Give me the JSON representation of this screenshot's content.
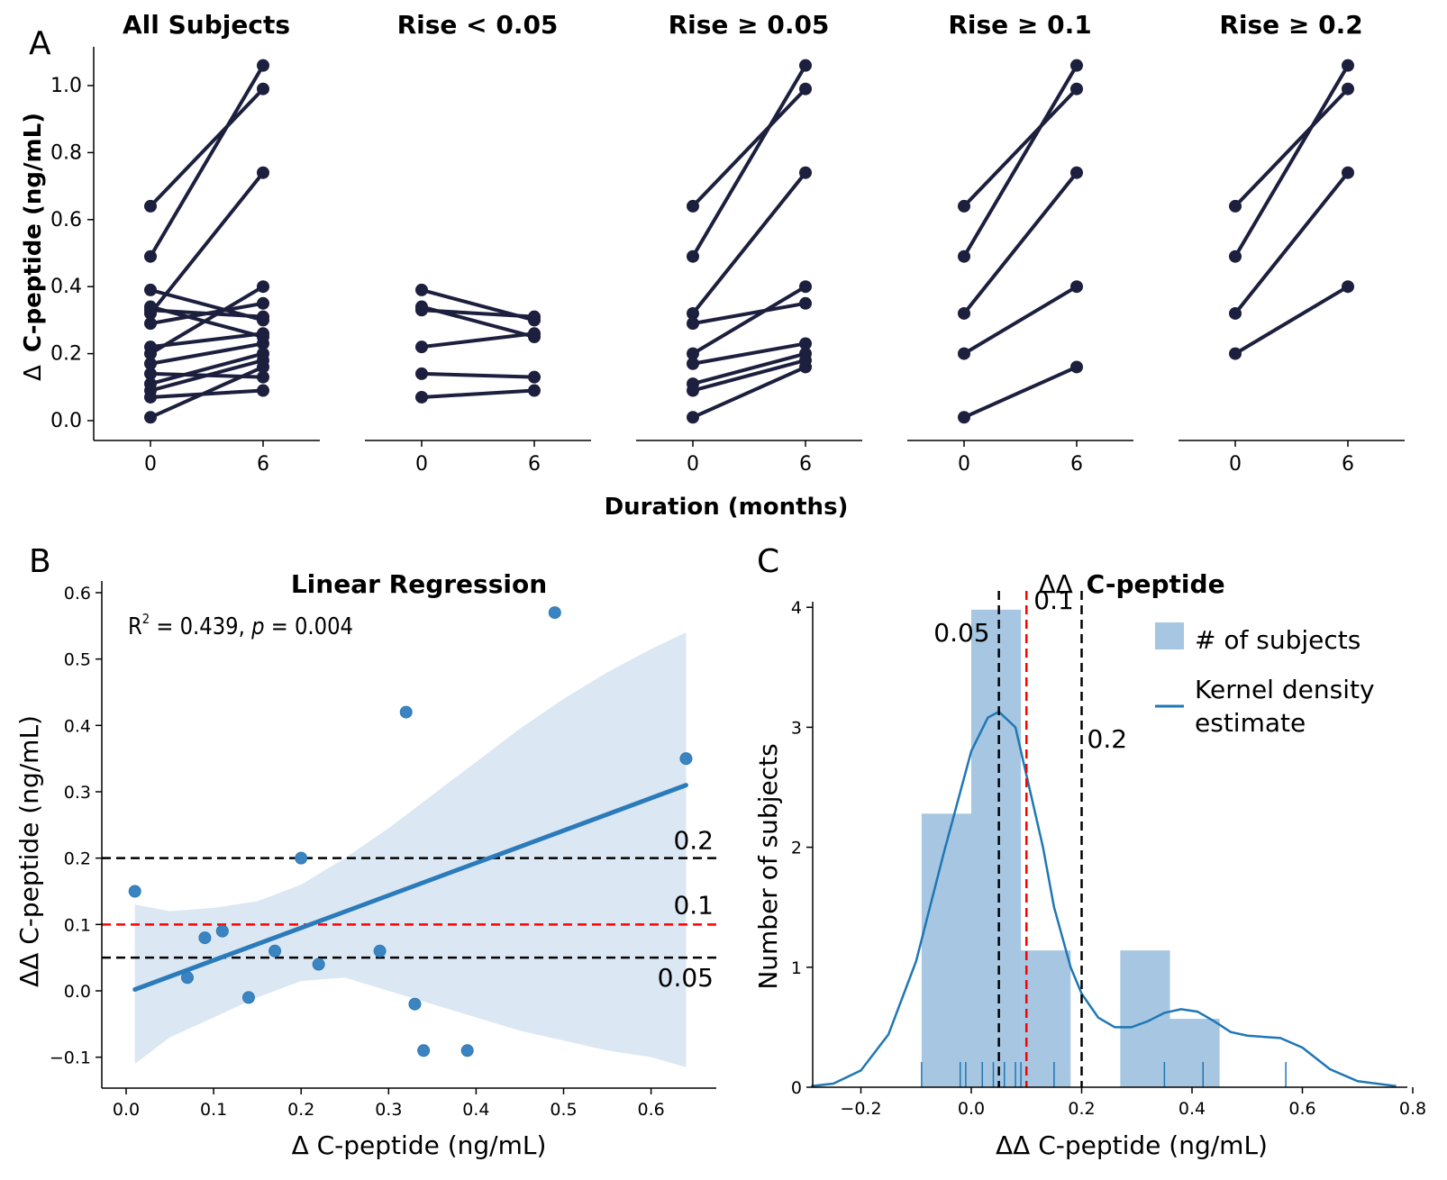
{
  "panel_letters": {
    "a": "A",
    "b": "B",
    "c": "C"
  },
  "panel_a": {
    "ylabel_prefix": "Δ",
    "ylabel_main": "C-peptide (ng/mL)",
    "xlabel": "Duration (months)",
    "ytick_labels": [
      "0.0",
      "0.2",
      "0.4",
      "0.6",
      "0.8",
      "1.0"
    ],
    "xtick_labels": [
      "0",
      "6"
    ]
  },
  "panel_b": {
    "title": "Linear Regression",
    "annotation": {
      "r2_prefix": "R",
      "r2_sup": "2",
      "r2_text": " = 0.439, ",
      "p_label": "p",
      "p_text": " = 0.004"
    },
    "xlabel": "Δ C-peptide (ng/mL)",
    "ylabel": "ΔΔ C-peptide (ng/mL)",
    "xtick_labels": [
      "0.0",
      "0.1",
      "0.2",
      "0.3",
      "0.4",
      "0.5",
      "0.6"
    ],
    "ytick_labels": [
      "−0.1",
      "0.0",
      "0.1",
      "0.2",
      "0.3",
      "0.4",
      "0.5",
      "0.6"
    ],
    "threshold_labels": [
      "0.2",
      "0.1",
      "0.05"
    ]
  },
  "panel_c": {
    "title_prefix": "ΔΔ",
    "title_main": "C-peptide",
    "xlabel": "ΔΔ C-peptide (ng/mL)",
    "ylabel": "Number of subjects",
    "xtick_labels": [
      "−0.2",
      "0.0",
      "0.2",
      "0.4",
      "0.6",
      "0.8"
    ],
    "ytick_labels": [
      "0",
      "1",
      "2",
      "3",
      "4"
    ],
    "legend": {
      "hist": "# of subjects",
      "kde_line1": "Kernel density",
      "kde_line2": "estimate"
    },
    "threshold_labels": [
      "0.05",
      "0.1",
      "0.2"
    ]
  },
  "chart_data": [
    {
      "type": "line",
      "panel": "A",
      "xlabel": "Duration (months)",
      "ylabel": "Δ C-peptide (ng/mL)",
      "x": [
        0,
        6
      ],
      "ylim": [
        -0.06,
        1.1
      ],
      "grid": false,
      "subplots": [
        {
          "title": "All Subjects",
          "pairs": [
            [
              0.64,
              0.99
            ],
            [
              0.49,
              1.06
            ],
            [
              0.32,
              0.74
            ],
            [
              0.39,
              0.3
            ],
            [
              0.34,
              0.25
            ],
            [
              0.33,
              0.31
            ],
            [
              0.29,
              0.35
            ],
            [
              0.22,
              0.26
            ],
            [
              0.2,
              0.4
            ],
            [
              0.17,
              0.23
            ],
            [
              0.14,
              0.13
            ],
            [
              0.11,
              0.2
            ],
            [
              0.09,
              0.18
            ],
            [
              0.07,
              0.09
            ],
            [
              0.01,
              0.16
            ]
          ]
        },
        {
          "title": "Rise < 0.05",
          "pairs": [
            [
              0.39,
              0.3
            ],
            [
              0.34,
              0.25
            ],
            [
              0.33,
              0.31
            ],
            [
              0.22,
              0.26
            ],
            [
              0.14,
              0.13
            ],
            [
              0.07,
              0.09
            ]
          ]
        },
        {
          "title": "Rise ≥ 0.05",
          "pairs": [
            [
              0.64,
              0.99
            ],
            [
              0.49,
              1.06
            ],
            [
              0.32,
              0.74
            ],
            [
              0.29,
              0.35
            ],
            [
              0.2,
              0.4
            ],
            [
              0.17,
              0.23
            ],
            [
              0.11,
              0.2
            ],
            [
              0.09,
              0.18
            ],
            [
              0.01,
              0.16
            ]
          ]
        },
        {
          "title": "Rise ≥ 0.1",
          "pairs": [
            [
              0.64,
              0.99
            ],
            [
              0.49,
              1.06
            ],
            [
              0.32,
              0.74
            ],
            [
              0.2,
              0.4
            ],
            [
              0.01,
              0.16
            ]
          ]
        },
        {
          "title": "Rise ≥ 0.2",
          "pairs": [
            [
              0.64,
              0.99
            ],
            [
              0.49,
              1.06
            ],
            [
              0.32,
              0.74
            ],
            [
              0.2,
              0.4
            ]
          ]
        }
      ]
    },
    {
      "type": "scatter",
      "panel": "B",
      "title": "Linear Regression",
      "xlabel": "Δ C-peptide (ng/mL)",
      "ylabel": "ΔΔ C-peptide (ng/mL)",
      "xlim": [
        -0.03,
        0.68
      ],
      "ylim": [
        -0.14,
        0.62
      ],
      "points": [
        [
          0.01,
          0.15
        ],
        [
          0.07,
          0.02
        ],
        [
          0.09,
          0.08
        ],
        [
          0.11,
          0.09
        ],
        [
          0.14,
          -0.01
        ],
        [
          0.17,
          0.06
        ],
        [
          0.2,
          0.2
        ],
        [
          0.22,
          0.04
        ],
        [
          0.29,
          0.06
        ],
        [
          0.32,
          0.42
        ],
        [
          0.33,
          -0.02
        ],
        [
          0.34,
          -0.09
        ],
        [
          0.39,
          -0.09
        ],
        [
          0.49,
          0.57
        ],
        [
          0.64,
          0.35
        ]
      ],
      "regression": {
        "x": [
          0.01,
          0.64
        ],
        "y": [
          0.002,
          0.31
        ],
        "r2": 0.439,
        "p": 0.004
      },
      "confidence_band": {
        "x": [
          0.01,
          0.05,
          0.1,
          0.15,
          0.2,
          0.25,
          0.3,
          0.35,
          0.4,
          0.45,
          0.5,
          0.55,
          0.6,
          0.64
        ],
        "lower": [
          -0.11,
          -0.07,
          -0.04,
          -0.01,
          0.015,
          0.02,
          0.0,
          -0.02,
          -0.04,
          -0.06,
          -0.075,
          -0.09,
          -0.1,
          -0.115
        ],
        "upper": [
          0.13,
          0.12,
          0.125,
          0.135,
          0.16,
          0.2,
          0.245,
          0.295,
          0.345,
          0.395,
          0.44,
          0.48,
          0.515,
          0.54
        ]
      },
      "thresholds": [
        {
          "y": 0.2,
          "label": "0.2",
          "color": "#000000"
        },
        {
          "y": 0.1,
          "label": "0.1",
          "color": "#ff0000"
        },
        {
          "y": 0.05,
          "label": "0.05",
          "color": "#000000"
        }
      ]
    },
    {
      "type": "bar",
      "panel": "C",
      "title": "ΔΔ C-peptide",
      "xlabel": "ΔΔ C-peptide (ng/mL)",
      "ylabel": "Number of subjects",
      "xlim": [
        -0.33,
        0.83
      ],
      "ylim": [
        0,
        4.15
      ],
      "bin_edges": [
        -0.09,
        0.0,
        0.09,
        0.18,
        0.27,
        0.36,
        0.45,
        0.54
      ],
      "bin_heights": [
        2.28,
        3.98,
        1.14,
        0.0,
        1.14,
        0.57,
        0.0
      ],
      "bar_color": "#a6c6e1",
      "kde": {
        "x": [
          -0.29,
          -0.25,
          -0.2,
          -0.15,
          -0.1,
          -0.05,
          0.0,
          0.03,
          0.05,
          0.08,
          0.1,
          0.13,
          0.15,
          0.18,
          0.2,
          0.23,
          0.26,
          0.29,
          0.32,
          0.35,
          0.38,
          0.41,
          0.44,
          0.47,
          0.5,
          0.53,
          0.56,
          0.6,
          0.65,
          0.7,
          0.77
        ],
        "y": [
          0.01,
          0.03,
          0.14,
          0.44,
          1.05,
          1.95,
          2.8,
          3.08,
          3.13,
          3.0,
          2.6,
          2.0,
          1.5,
          1.0,
          0.78,
          0.58,
          0.5,
          0.5,
          0.55,
          0.62,
          0.65,
          0.63,
          0.55,
          0.46,
          0.43,
          0.42,
          0.41,
          0.33,
          0.15,
          0.05,
          0.01
        ]
      },
      "rug": [
        -0.09,
        -0.02,
        -0.01,
        0.02,
        0.04,
        0.06,
        0.06,
        0.08,
        0.09,
        0.15,
        0.35,
        0.42,
        0.57
      ],
      "thresholds": [
        {
          "x": 0.05,
          "label": "0.05",
          "color": "#000000"
        },
        {
          "x": 0.1,
          "label": "0.1",
          "color": "#ff0000"
        },
        {
          "x": 0.2,
          "label": "0.2",
          "color": "#000000"
        }
      ],
      "legend_position": "top-right"
    }
  ]
}
